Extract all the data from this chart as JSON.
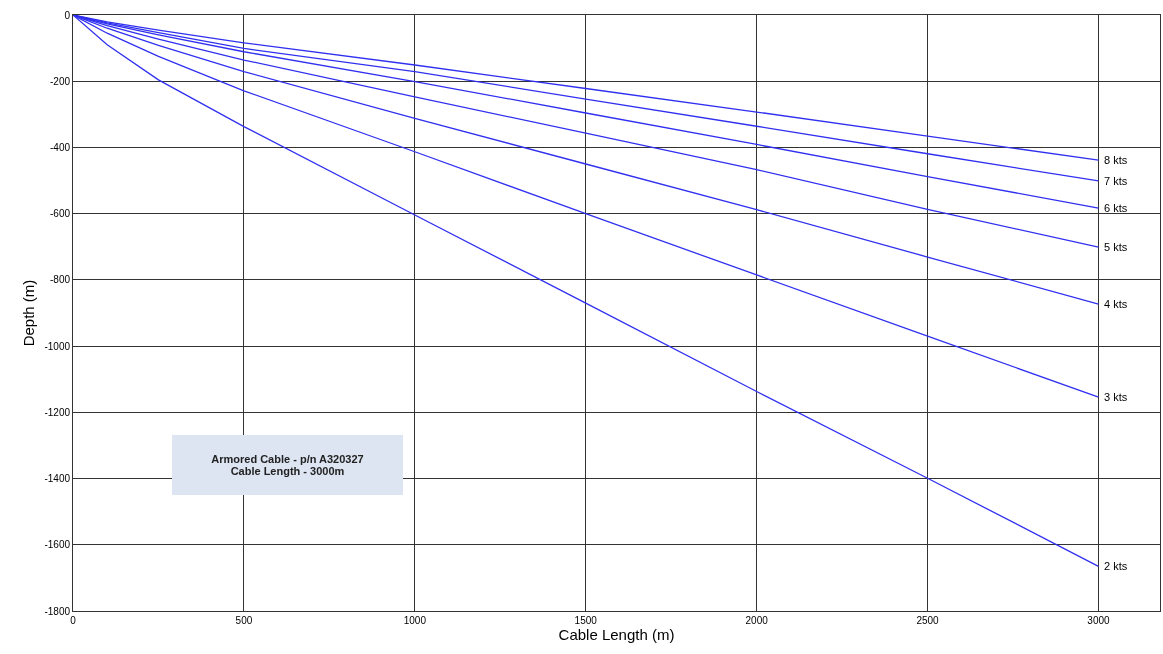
{
  "chart_data": {
    "type": "line",
    "xlabel": "Cable Length (m)",
    "ylabel": "Depth (m)",
    "x": [
      0,
      100,
      250,
      500,
      1000,
      1500,
      2000,
      2500,
      3000
    ],
    "series": [
      {
        "name": "8 kts",
        "color": "#3030f0",
        "values": [
          0,
          -21,
          -46,
          -84,
          -151,
          -222,
          -293,
          -366,
          -438
        ]
      },
      {
        "name": "7 kts",
        "color": "#3030f0",
        "values": [
          0,
          -24,
          -53,
          -101,
          -171,
          -254,
          -336,
          -419,
          -501
        ]
      },
      {
        "name": "6 kts",
        "color": "#3030f0",
        "values": [
          0,
          -27,
          -60,
          -111,
          -201,
          -296,
          -391,
          -488,
          -583
        ]
      },
      {
        "name": "5 kts",
        "color": "#3030f0",
        "values": [
          0,
          -32,
          -73,
          -136,
          -247,
          -357,
          -467,
          -587,
          -701
        ]
      },
      {
        "name": "4 kts",
        "color": "#3030f0",
        "values": [
          0,
          -40,
          -92,
          -171,
          -312,
          -450,
          -588,
          -731,
          -873
        ]
      },
      {
        "name": "3 kts",
        "color": "#3030f0",
        "values": [
          0,
          -55,
          -125,
          -229,
          -413,
          -600,
          -785,
          -970,
          -1154
        ]
      },
      {
        "name": "2 kts",
        "color": "#3030f0",
        "values": [
          0,
          -90,
          -196,
          -337,
          -604,
          -870,
          -1137,
          -1399,
          -1665
        ]
      }
    ],
    "xlim": [
      0,
      3180
    ],
    "xticks": [
      0,
      500,
      1000,
      1500,
      2000,
      2500,
      3000
    ],
    "ylim": [
      -1800,
      0
    ],
    "yticks": [
      -1800,
      -1600,
      -1400,
      -1200,
      -1000,
      -800,
      -600,
      -400,
      -200,
      0
    ],
    "annotations": [
      "Armored Cable - p/n A320327\nCable Length - 3000m"
    ],
    "grid": true,
    "legend": false,
    "marker": "none",
    "line_style": "solid"
  }
}
